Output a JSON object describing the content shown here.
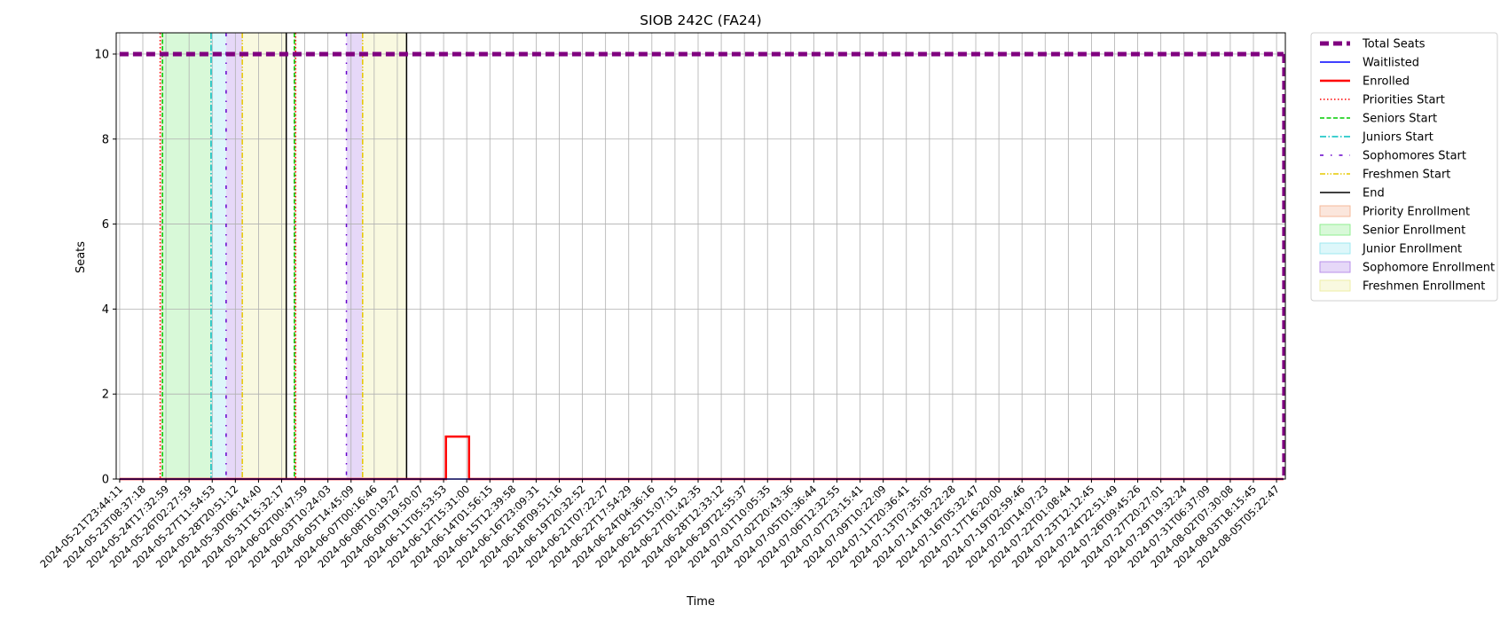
{
  "chart_data": {
    "type": "line",
    "title": "SIOB 242C (FA24)",
    "xlabel": "Time",
    "ylabel": "Seats",
    "ylim": [
      0,
      10.5
    ],
    "yticks": [
      0,
      2,
      4,
      6,
      8,
      10
    ],
    "grid": true,
    "legend_position": "outside-right",
    "xticks": [
      "2024-05-21T23:44:11",
      "2024-05-23T08:37:18",
      "2024-05-24T17:32:59",
      "2024-05-26T02:27:59",
      "2024-05-27T11:54:53",
      "2024-05-28T20:51:12",
      "2024-05-30T06:14:40",
      "2024-05-31T15:32:17",
      "2024-06-02T00:47:59",
      "2024-06-03T10:24:03",
      "2024-06-05T14:45:09",
      "2024-06-07T00:16:46",
      "2024-06-08T10:19:27",
      "2024-06-09T19:50:07",
      "2024-06-11T05:53:53",
      "2024-06-12T15:31:00",
      "2024-06-14T01:56:15",
      "2024-06-15T12:39:58",
      "2024-06-16T23:09:31",
      "2024-06-18T09:51:16",
      "2024-06-19T20:32:52",
      "2024-06-21T07:22:27",
      "2024-06-22T17:54:29",
      "2024-06-24T04:36:16",
      "2024-06-25T15:07:15",
      "2024-06-27T01:42:35",
      "2024-06-28T12:33:12",
      "2024-06-29T22:55:37",
      "2024-07-01T10:05:35",
      "2024-07-02T20:43:36",
      "2024-07-05T01:36:44",
      "2024-07-06T12:32:55",
      "2024-07-07T23:15:41",
      "2024-07-09T10:22:09",
      "2024-07-11T20:36:41",
      "2024-07-13T07:35:05",
      "2024-07-14T18:22:28",
      "2024-07-16T05:32:47",
      "2024-07-17T16:20:00",
      "2024-07-19T02:59:46",
      "2024-07-20T14:07:23",
      "2024-07-22T01:08:44",
      "2024-07-23T12:12:45",
      "2024-07-24T22:51:49",
      "2024-07-26T09:45:26",
      "2024-07-27T20:27:01",
      "2024-07-29T19:32:24",
      "2024-07-31T06:37:09",
      "2024-08-02T07:30:08",
      "2024-08-03T18:15:45",
      "2024-08-05T05:22:47"
    ],
    "series": [
      {
        "name": "Total Seats",
        "x": [
          0,
          50.3
        ],
        "y": [
          10,
          10
        ]
      },
      {
        "name": "Waitlisted",
        "x": [
          0,
          50.3
        ],
        "y": [
          0,
          0
        ]
      },
      {
        "name": "Enrolled",
        "x": [
          0,
          14.1,
          14.1,
          15.1,
          15.1,
          50.3
        ],
        "y": [
          0,
          0,
          1,
          1,
          0,
          0
        ]
      }
    ],
    "total_seats_drop": {
      "x": 50.3,
      "y": [
        10,
        0
      ]
    },
    "markers": [
      {
        "name": "Priorities Start",
        "x": [
          1.75,
          7.6
        ]
      },
      {
        "name": "Seniors Start",
        "x": [
          1.85,
          7.55
        ]
      },
      {
        "name": "Juniors Start",
        "x": [
          3.95
        ]
      },
      {
        "name": "Sophomores Start",
        "x": [
          4.6,
          9.8
        ]
      },
      {
        "name": "Freshmen Start",
        "x": [
          5.3,
          10.5
        ]
      },
      {
        "name": "End",
        "x": [
          7.2,
          12.4
        ]
      }
    ],
    "regions": [
      {
        "name": "Priority Enrollment",
        "ranges": [
          [
            1.75,
            1.85
          ],
          [
            7.6,
            7.65
          ]
        ]
      },
      {
        "name": "Senior Enrollment",
        "ranges": [
          [
            1.85,
            3.95
          ],
          [
            7.55,
            7.6
          ]
        ]
      },
      {
        "name": "Junior Enrollment",
        "ranges": [
          [
            3.95,
            4.6
          ]
        ]
      },
      {
        "name": "Sophomore Enrollment",
        "ranges": [
          [
            4.6,
            5.3
          ],
          [
            9.8,
            10.5
          ]
        ]
      },
      {
        "name": "Freshmen Enrollment",
        "ranges": [
          [
            5.3,
            7.2
          ],
          [
            10.5,
            12.4
          ]
        ]
      }
    ],
    "legend": [
      {
        "label": "Total Seats",
        "kind": "line",
        "color": "#800080",
        "width": 5,
        "dash": "10,5"
      },
      {
        "label": "Waitlisted",
        "kind": "line",
        "color": "#0000ff",
        "width": 1.5,
        "dash": ""
      },
      {
        "label": "Enrolled",
        "kind": "line",
        "color": "#ff0000",
        "width": 2.5,
        "dash": ""
      },
      {
        "label": "Priorities Start",
        "kind": "line",
        "color": "#ff0000",
        "width": 1.5,
        "dash": "1.5,2.5"
      },
      {
        "label": "Seniors Start",
        "kind": "line",
        "color": "#00cc00",
        "width": 1.5,
        "dash": "5,2.5"
      },
      {
        "label": "Juniors Start",
        "kind": "line",
        "color": "#00bfbf",
        "width": 1.5,
        "dash": "7,2.5,1.5,2.5"
      },
      {
        "label": "Sophomores Start",
        "kind": "line",
        "color": "#6600cc",
        "width": 1.5,
        "dash": "4,8,1.5,8"
      },
      {
        "label": "Freshmen Start",
        "kind": "line",
        "color": "#e6c800",
        "width": 1.5,
        "dash": "6,2,1.5,2,1.5,2"
      },
      {
        "label": "End",
        "kind": "line",
        "color": "#000000",
        "width": 1.5,
        "dash": ""
      },
      {
        "label": "Priority Enrollment",
        "kind": "patch",
        "color": "#f4b89a"
      },
      {
        "label": "Senior Enrollment",
        "kind": "patch",
        "color": "#90ee90"
      },
      {
        "label": "Junior Enrollment",
        "kind": "patch",
        "color": "#9ee8f0"
      },
      {
        "label": "Sophomore Enrollment",
        "kind": "patch",
        "color": "#b890ea"
      },
      {
        "label": "Freshmen Enrollment",
        "kind": "patch",
        "color": "#eeeea6"
      }
    ]
  }
}
